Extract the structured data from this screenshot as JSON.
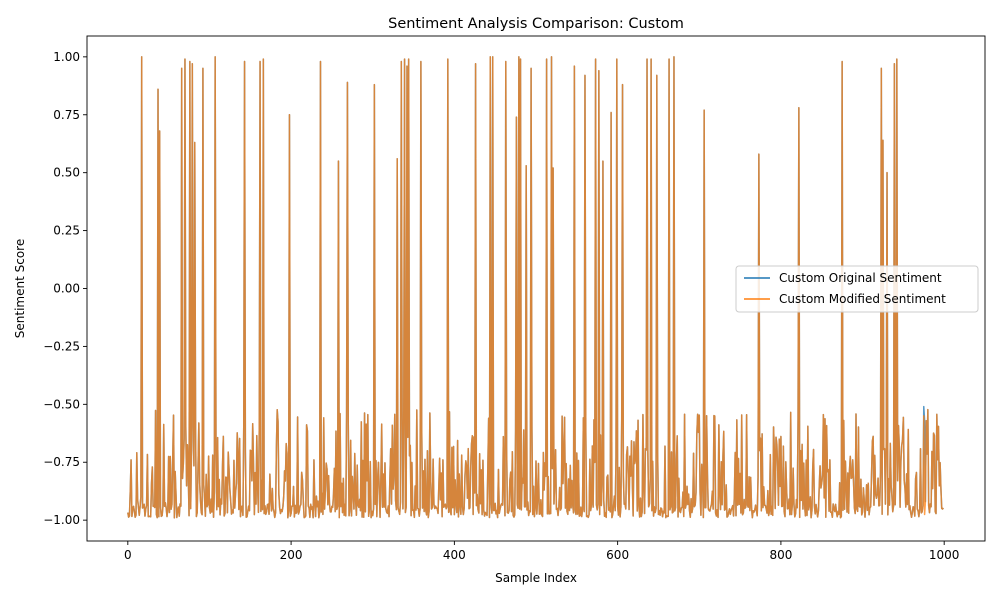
{
  "chart_data": {
    "type": "line",
    "title": "Sentiment Analysis Comparison: Custom",
    "xlabel": "Sample Index",
    "ylabel": "Sentiment Score",
    "xlim": [
      -50,
      1050
    ],
    "ylim": [
      -1.09,
      1.09
    ],
    "x_ticks": [
      0,
      200,
      400,
      600,
      800,
      1000
    ],
    "x_tick_labels": [
      "0",
      "200",
      "400",
      "600",
      "800",
      "1000"
    ],
    "y_ticks": [
      -1.0,
      -0.75,
      -0.5,
      -0.25,
      0.0,
      0.25,
      0.5,
      0.75,
      1.0
    ],
    "y_tick_labels": [
      "−1.00",
      "−0.75",
      "−0.50",
      "−0.25",
      "0.00",
      "0.25",
      "0.50",
      "0.75",
      "1.00"
    ],
    "grid": false,
    "legend_position": "center-right",
    "n_points": 1000,
    "base_range": [
      -0.99,
      -0.52
    ],
    "peaks": [
      [
        17,
        1.0
      ],
      [
        37,
        0.86
      ],
      [
        39,
        0.68
      ],
      [
        66,
        0.95
      ],
      [
        70,
        0.99
      ],
      [
        76,
        0.98
      ],
      [
        79,
        0.97
      ],
      [
        82,
        0.63
      ],
      [
        92,
        0.95
      ],
      [
        107,
        1.0
      ],
      [
        143,
        0.98
      ],
      [
        162,
        0.98
      ],
      [
        166,
        0.99
      ],
      [
        198,
        0.75
      ],
      [
        236,
        0.98
      ],
      [
        258,
        0.55
      ],
      [
        269,
        0.89
      ],
      [
        302,
        0.88
      ],
      [
        330,
        0.56
      ],
      [
        335,
        0.98
      ],
      [
        339,
        0.99
      ],
      [
        342,
        0.96
      ],
      [
        344,
        0.99
      ],
      [
        359,
        0.98
      ],
      [
        392,
        0.99
      ],
      [
        426,
        0.97
      ],
      [
        444,
        1.0
      ],
      [
        447,
        1.0
      ],
      [
        463,
        0.98
      ],
      [
        476,
        0.74
      ],
      [
        479,
        1.0
      ],
      [
        481,
        0.99
      ],
      [
        488,
        0.53
      ],
      [
        494,
        0.95
      ],
      [
        513,
        0.99
      ],
      [
        519,
        1.0
      ],
      [
        521,
        0.52
      ],
      [
        547,
        0.96
      ],
      [
        560,
        0.92
      ],
      [
        573,
        0.99
      ],
      [
        577,
        0.94
      ],
      [
        582,
        0.55
      ],
      [
        592,
        0.76
      ],
      [
        599,
        0.99
      ],
      [
        606,
        0.88
      ],
      [
        636,
        0.99
      ],
      [
        641,
        0.99
      ],
      [
        648,
        0.92
      ],
      [
        663,
        0.99
      ],
      [
        669,
        1.0
      ],
      [
        706,
        0.77
      ],
      [
        773,
        0.58
      ],
      [
        822,
        0.78
      ],
      [
        875,
        0.98
      ],
      [
        923,
        0.95
      ],
      [
        925,
        0.64
      ],
      [
        930,
        0.5
      ],
      [
        939,
        0.97
      ],
      [
        942,
        0.99
      ]
    ],
    "series": [
      {
        "name": "Custom Original Sentiment",
        "color": "#1f77b4"
      },
      {
        "name": "Custom Modified Sentiment",
        "color": "#ff7f0e"
      }
    ]
  }
}
